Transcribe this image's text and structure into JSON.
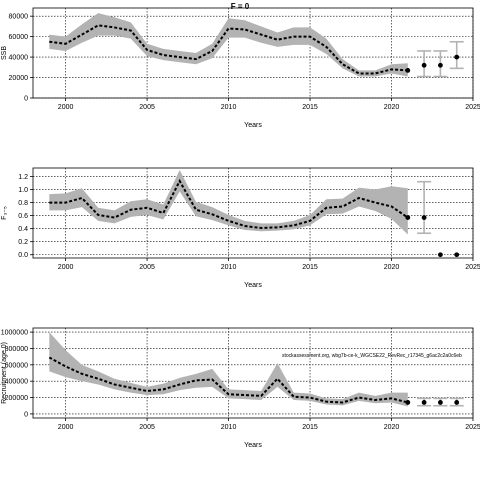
{
  "figure": {
    "title": "F = 0",
    "annotation": "stockassessment.org, wbg7b-ce-k_WGCSE22_RevRec_r17345_g6ac2c2a0c6eb"
  },
  "colors": {
    "band": "#b3b3b3",
    "band_dark": "#a6a6a6",
    "line": "#000000",
    "grid": "#000000",
    "whisker": "#b3b3b3"
  },
  "chart_data": [
    {
      "type": "line",
      "id": "ssb",
      "title": "F = 0",
      "xlabel": "Years",
      "ylabel": "SSB",
      "xlim": [
        1998,
        2025
      ],
      "ylim": [
        0,
        88000
      ],
      "x_ticks": [
        2000,
        2005,
        2010,
        2015,
        2020,
        2025
      ],
      "y_ticks": [
        0,
        20000,
        40000,
        60000,
        80000
      ],
      "grid": true,
      "series": [
        {
          "x": [
            1999,
            2000,
            2001,
            2002,
            2003,
            2004,
            2005,
            2006,
            2007,
            2008,
            2009,
            2010,
            2011,
            2012,
            2013,
            2014,
            2015,
            2016,
            2017,
            2018,
            2019,
            2020,
            2021
          ],
          "values": [
            55000,
            53000,
            62000,
            71000,
            69000,
            66000,
            47000,
            42000,
            40000,
            38000,
            46000,
            68000,
            67000,
            62000,
            57000,
            60000,
            60000,
            50000,
            33000,
            24000,
            24000,
            28000,
            27000
          ],
          "lower": [
            48000,
            46000,
            54000,
            61000,
            61000,
            58000,
            41000,
            37000,
            35000,
            33000,
            39000,
            59000,
            59000,
            54000,
            50000,
            52000,
            52000,
            43000,
            29000,
            21000,
            21000,
            24000,
            21000
          ],
          "upper": [
            62000,
            60000,
            72000,
            83000,
            79000,
            74000,
            53000,
            48000,
            46000,
            44000,
            53000,
            78000,
            76000,
            70000,
            64000,
            69000,
            69000,
            58000,
            38000,
            27000,
            27000,
            33000,
            34000
          ]
        }
      ],
      "forecast": {
        "x": [
          2021,
          2022,
          2023,
          2024
        ],
        "values": [
          27000,
          32000,
          32000,
          40000
        ],
        "lower": [
          21000,
          21000,
          21000,
          29000
        ],
        "upper": [
          34000,
          46000,
          46000,
          55000
        ]
      }
    },
    {
      "type": "line",
      "id": "fbar",
      "title": "",
      "xlabel": "Years",
      "ylabel": "F₃₋₅",
      "xlim": [
        1998,
        2025
      ],
      "ylim": [
        -0.05,
        1.33
      ],
      "x_ticks": [
        2000,
        2005,
        2010,
        2015,
        2020,
        2025
      ],
      "y_ticks": [
        "0.0",
        "0.2",
        "0.4",
        "0.6",
        "0.8",
        "1.0",
        "1.2"
      ],
      "grid": true,
      "series": [
        {
          "x": [
            1999,
            2000,
            2001,
            2002,
            2003,
            2004,
            2005,
            2006,
            2007,
            2008,
            2009,
            2010,
            2011,
            2012,
            2013,
            2014,
            2015,
            2016,
            2017,
            2018,
            2019,
            2020,
            2021
          ],
          "values": [
            0.8,
            0.8,
            0.87,
            0.61,
            0.57,
            0.69,
            0.72,
            0.64,
            1.13,
            0.69,
            0.62,
            0.52,
            0.44,
            0.41,
            0.42,
            0.45,
            0.52,
            0.72,
            0.74,
            0.87,
            0.8,
            0.74,
            0.57
          ],
          "lower": [
            0.68,
            0.68,
            0.73,
            0.52,
            0.48,
            0.58,
            0.61,
            0.54,
            0.97,
            0.59,
            0.53,
            0.45,
            0.38,
            0.36,
            0.37,
            0.39,
            0.45,
            0.62,
            0.63,
            0.74,
            0.67,
            0.55,
            0.31
          ],
          "upper": [
            0.93,
            0.94,
            1.02,
            0.72,
            0.68,
            0.82,
            0.85,
            0.77,
            1.3,
            0.81,
            0.73,
            0.61,
            0.52,
            0.48,
            0.48,
            0.52,
            0.61,
            0.85,
            0.86,
            1.03,
            1.0,
            1.05,
            1.02
          ]
        }
      ],
      "forecast": {
        "x": [
          2021,
          2022,
          2023,
          2024
        ],
        "values": [
          0.57,
          0.57,
          0.0,
          0.0
        ],
        "lower": [
          0.31,
          0.33,
          null,
          null
        ],
        "upper": [
          1.02,
          1.12,
          null,
          null
        ]
      }
    },
    {
      "type": "line",
      "id": "recruitment",
      "title": "",
      "xlabel": "Years",
      "ylabel": "Recruitment (age 0)",
      "xlim": [
        1998,
        2025
      ],
      "ylim": [
        -50000,
        1050000
      ],
      "x_ticks": [
        2000,
        2005,
        2010,
        2015,
        2020,
        2025
      ],
      "y_ticks": [
        "0",
        "200000",
        "400000",
        "600000",
        "800000",
        "1000000"
      ],
      "grid": true,
      "series": [
        {
          "x": [
            1999,
            2000,
            2001,
            2002,
            2003,
            2004,
            2005,
            2006,
            2007,
            2008,
            2009,
            2010,
            2011,
            2012,
            2013,
            2014,
            2015,
            2016,
            2017,
            2018,
            2019,
            2020,
            2021
          ],
          "values": [
            690000,
            580000,
            490000,
            430000,
            360000,
            320000,
            280000,
            300000,
            360000,
            410000,
            420000,
            240000,
            230000,
            220000,
            430000,
            210000,
            200000,
            150000,
            140000,
            200000,
            170000,
            190000,
            140000
          ],
          "lower": [
            520000,
            450000,
            400000,
            360000,
            300000,
            260000,
            230000,
            240000,
            290000,
            320000,
            330000,
            190000,
            180000,
            170000,
            330000,
            170000,
            160000,
            115000,
            105000,
            160000,
            130000,
            140000,
            90000
          ],
          "upper": [
            1000000,
            780000,
            600000,
            520000,
            430000,
            380000,
            330000,
            370000,
            440000,
            490000,
            550000,
            300000,
            290000,
            280000,
            620000,
            260000,
            250000,
            190000,
            180000,
            260000,
            220000,
            260000,
            260000
          ]
        }
      ],
      "forecast": {
        "x": [
          2021,
          2022,
          2023,
          2024
        ],
        "values": [
          140000,
          140000,
          140000,
          140000
        ],
        "lower": [
          100000,
          100000,
          100000,
          100000
        ],
        "upper": [
          190000,
          190000,
          190000,
          190000
        ]
      }
    }
  ]
}
